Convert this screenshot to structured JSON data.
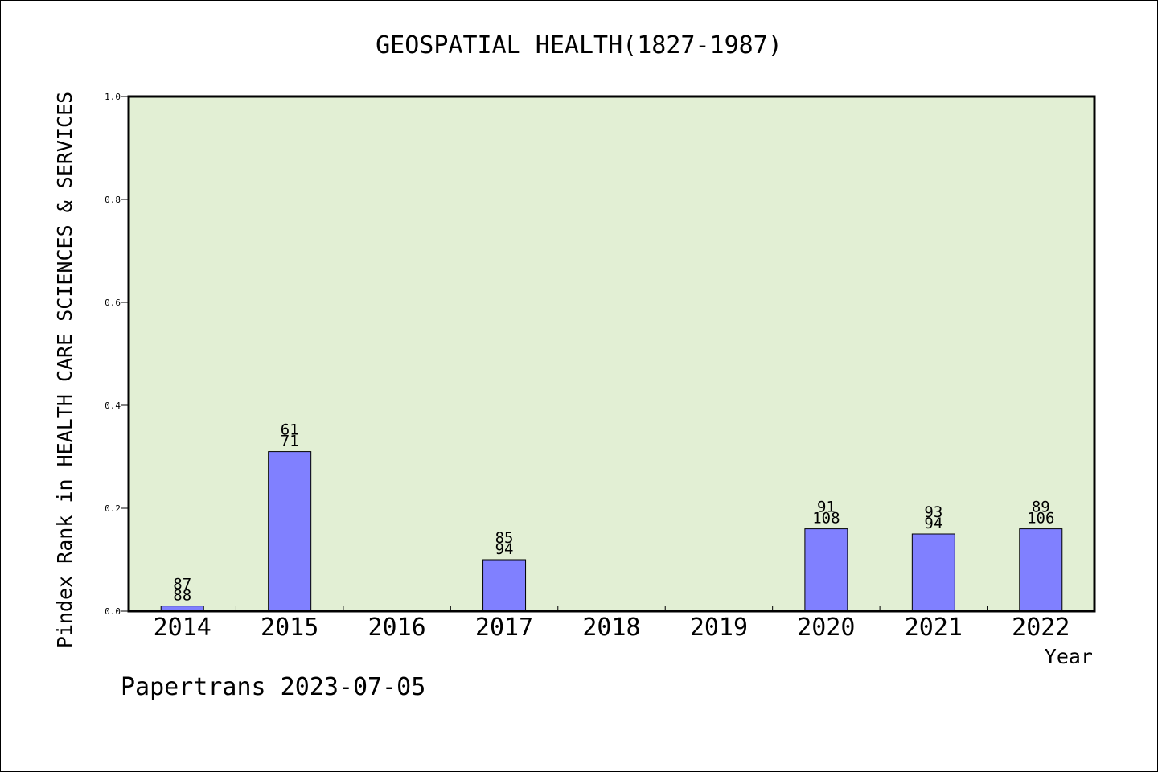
{
  "chart_data": {
    "type": "bar",
    "title": "GEOSPATIAL HEALTH(1827-1987)",
    "xlabel": "Year",
    "ylabel": "Pindex Rank in HEALTH CARE SCIENCES & SERVICES",
    "categories": [
      "2014",
      "2015",
      "2016",
      "2017",
      "2018",
      "2019",
      "2020",
      "2021",
      "2022"
    ],
    "values": [
      0.01,
      0.31,
      null,
      0.1,
      null,
      null,
      0.16,
      0.15,
      0.16
    ],
    "labels_top": [
      "87",
      "61",
      "",
      "85",
      "",
      "",
      "91",
      "93",
      "89"
    ],
    "labels_bottom": [
      "88",
      "71",
      "",
      "94",
      "",
      "",
      "108",
      "94",
      "106"
    ],
    "ylim": [
      0,
      1.0
    ],
    "yticks": [
      "0.0",
      "0.2",
      "0.4",
      "0.6",
      "0.8",
      "1.0"
    ],
    "colors": {
      "plot_background": "#e2efd4",
      "bar_fill": "#8080ff",
      "bar_stroke": "#000000"
    },
    "legend": "none",
    "grid": false
  },
  "footer": "Papertrans 2023-07-05"
}
